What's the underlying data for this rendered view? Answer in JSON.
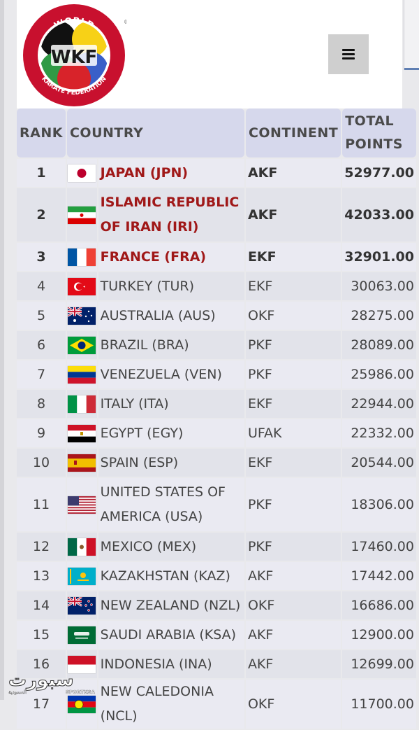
{
  "header": {
    "logo_text": "WKF",
    "logo_ring_top": "WORLD",
    "logo_ring_bottom": "KARATE FEDERATION",
    "menu_icon": "hamburger-icon"
  },
  "table": {
    "columns": [
      "RANK",
      "COUNTRY",
      "CONTINENT",
      "TOTAL POINTS"
    ],
    "column_total_line1": "TOTAL",
    "column_total_line2": "POINTS",
    "rows": [
      {
        "rank": "1",
        "country": "JAPAN (JPN)",
        "continent": "AKF",
        "points": "52977.00",
        "flag": "japan-flag-icon"
      },
      {
        "rank": "2",
        "country": "ISLAMIC REPUBLIC OF IRAN (IRI)",
        "continent": "AKF",
        "points": "42033.00",
        "flag": "iran-flag-icon"
      },
      {
        "rank": "3",
        "country": "FRANCE (FRA)",
        "continent": "EKF",
        "points": "32901.00",
        "flag": "france-flag-icon"
      },
      {
        "rank": "4",
        "country": "TURKEY (TUR)",
        "continent": "EKF",
        "points": "30063.00",
        "flag": "turkey-flag-icon"
      },
      {
        "rank": "5",
        "country": "AUSTRALIA (AUS)",
        "continent": "OKF",
        "points": "28275.00",
        "flag": "australia-flag-icon"
      },
      {
        "rank": "6",
        "country": "BRAZIL (BRA)",
        "continent": "PKF",
        "points": "28089.00",
        "flag": "brazil-flag-icon"
      },
      {
        "rank": "7",
        "country": "VENEZUELA (VEN)",
        "continent": "PKF",
        "points": "25986.00",
        "flag": "venezuela-flag-icon"
      },
      {
        "rank": "8",
        "country": "ITALY (ITA)",
        "continent": "EKF",
        "points": "22944.00",
        "flag": "italy-flag-icon"
      },
      {
        "rank": "9",
        "country": "EGYPT (EGY)",
        "continent": "UFAK",
        "points": "22332.00",
        "flag": "egypt-flag-icon"
      },
      {
        "rank": "10",
        "country": "SPAIN (ESP)",
        "continent": "EKF",
        "points": "20544.00",
        "flag": "spain-flag-icon"
      },
      {
        "rank": "11",
        "country": "UNITED STATES OF AMERICA (USA)",
        "continent": "PKF",
        "points": "18306.00",
        "flag": "usa-flag-icon"
      },
      {
        "rank": "12",
        "country": "MEXICO (MEX)",
        "continent": "PKF",
        "points": "17460.00",
        "flag": "mexico-flag-icon"
      },
      {
        "rank": "13",
        "country": "KAZAKHSTAN (KAZ)",
        "continent": "AKF",
        "points": "17442.00",
        "flag": "kazakhstan-flag-icon"
      },
      {
        "rank": "14",
        "country": "NEW ZEALAND (NZL)",
        "continent": "OKF",
        "points": "16686.00",
        "flag": "new-zealand-flag-icon"
      },
      {
        "rank": "15",
        "country": "SAUDI ARABIA (KSA)",
        "continent": "AKF",
        "points": "12900.00",
        "flag": "saudi-arabia-flag-icon"
      },
      {
        "rank": "16",
        "country": "INDONESIA (INA)",
        "continent": "AKF",
        "points": "12699.00",
        "flag": "indonesia-flag-icon"
      },
      {
        "rank": "17",
        "country": "NEW CALEDONIA (NCL)",
        "continent": "OKF",
        "points": "11700.00",
        "flag": "new-caledonia-flag-icon"
      }
    ]
  },
  "watermark": {
    "arabic_text": "سبورت",
    "arabic_sub": "السعودية",
    "latin_text": "SPORTKSA"
  }
}
